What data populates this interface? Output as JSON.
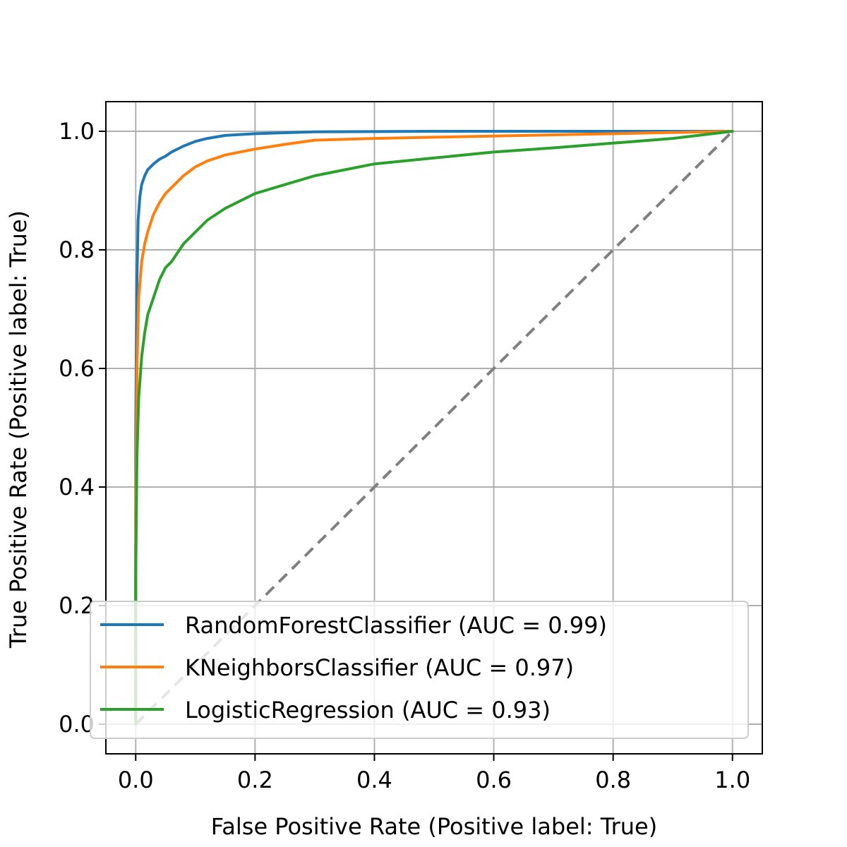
{
  "chart_data": {
    "type": "line",
    "title": "",
    "xlabel": "False Positive Rate (Positive label: True)",
    "ylabel": "True Positive Rate (Positive label: True)",
    "xlim": [
      -0.05,
      1.05
    ],
    "ylim": [
      -0.05,
      1.05
    ],
    "x_ticks": [
      "0.0",
      "0.2",
      "0.4",
      "0.6",
      "0.8",
      "1.0"
    ],
    "y_ticks": [
      "0.0",
      "0.2",
      "0.4",
      "0.6",
      "0.8",
      "1.0"
    ],
    "grid": true,
    "legend_position": "lower-right",
    "series": [
      {
        "name": "RandomForestClassifier (AUC = 0.99)",
        "color": "#1f77b4",
        "x": [
          0.0,
          0.0,
          0.002,
          0.004,
          0.007,
          0.01,
          0.015,
          0.02,
          0.03,
          0.04,
          0.05,
          0.06,
          0.08,
          0.1,
          0.12,
          0.15,
          0.2,
          0.3,
          0.5,
          1.0
        ],
        "y": [
          0.0,
          0.5,
          0.75,
          0.85,
          0.89,
          0.91,
          0.925,
          0.935,
          0.945,
          0.953,
          0.958,
          0.965,
          0.975,
          0.983,
          0.988,
          0.993,
          0.996,
          0.999,
          1.0,
          1.0
        ]
      },
      {
        "name": "KNeighborsClassifier (AUC = 0.97)",
        "color": "#ff7f0e",
        "x": [
          0.0,
          0.0,
          0.002,
          0.005,
          0.01,
          0.015,
          0.02,
          0.03,
          0.04,
          0.05,
          0.06,
          0.08,
          0.1,
          0.12,
          0.15,
          0.2,
          0.25,
          0.3,
          0.4,
          0.5,
          0.6,
          0.8,
          1.0
        ],
        "y": [
          0.0,
          0.35,
          0.6,
          0.72,
          0.78,
          0.81,
          0.83,
          0.86,
          0.88,
          0.895,
          0.905,
          0.925,
          0.94,
          0.95,
          0.96,
          0.97,
          0.978,
          0.985,
          0.988,
          0.99,
          0.992,
          0.996,
          1.0
        ]
      },
      {
        "name": "LogisticRegression (AUC = 0.93)",
        "color": "#2ca02c",
        "x": [
          0.0,
          0.0,
          0.002,
          0.005,
          0.01,
          0.015,
          0.02,
          0.03,
          0.04,
          0.05,
          0.06,
          0.08,
          0.1,
          0.12,
          0.15,
          0.2,
          0.25,
          0.3,
          0.4,
          0.5,
          0.6,
          0.7,
          0.8,
          0.9,
          1.0
        ],
        "y": [
          0.0,
          0.25,
          0.45,
          0.55,
          0.62,
          0.66,
          0.69,
          0.72,
          0.75,
          0.77,
          0.78,
          0.81,
          0.83,
          0.85,
          0.87,
          0.895,
          0.91,
          0.925,
          0.945,
          0.955,
          0.965,
          0.972,
          0.98,
          0.988,
          1.0
        ]
      }
    ],
    "reference_line": {
      "color": "#808080",
      "x": [
        0.0,
        1.0
      ],
      "y": [
        0.0,
        1.0
      ]
    }
  }
}
